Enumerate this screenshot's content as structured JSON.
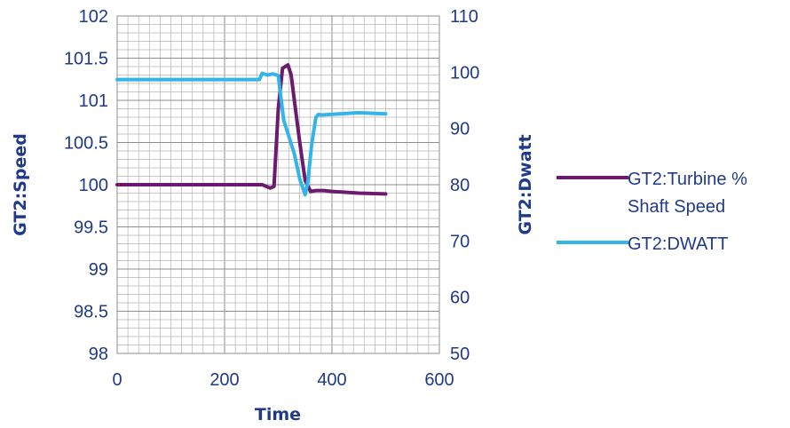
{
  "chart_data": {
    "type": "line",
    "xlabel": "Time",
    "ylabel_left": "GT2:Speed",
    "ylabel_right": "GT2:Dwatt",
    "xlim": [
      0,
      600
    ],
    "ylim_left": [
      98,
      102
    ],
    "ylim_right": [
      50,
      110
    ],
    "x_ticks": [
      "0",
      "200",
      "400",
      "600"
    ],
    "y_left_ticks": [
      "98",
      "98.5",
      "99",
      "99.5",
      "100",
      "100.5",
      "101",
      "101.5",
      "102"
    ],
    "y_right_ticks": [
      "50",
      "60",
      "70",
      "80",
      "90",
      "100",
      "110"
    ],
    "grid": true,
    "legend_position": "right",
    "series": [
      {
        "name": "GT2:Turbine % Shaft Speed",
        "name_lines": [
          "GT2:Turbine %",
          "Shaft Speed"
        ],
        "axis": "left",
        "color": "#6b1a6e",
        "x": [
          0,
          100,
          200,
          270,
          285,
          292,
          300,
          308,
          318,
          324,
          330,
          340,
          350,
          360,
          370,
          385,
          400,
          450,
          500
        ],
        "y": [
          100,
          100,
          100,
          100,
          99.96,
          99.98,
          100.9,
          101.38,
          101.42,
          101.3,
          101.0,
          100.5,
          100.05,
          99.92,
          99.93,
          99.93,
          99.92,
          99.9,
          99.89
        ]
      },
      {
        "name": "GT2:DWATT",
        "axis": "right",
        "color": "#33b5ea",
        "x": [
          0,
          100,
          200,
          265,
          270,
          280,
          290,
          300,
          310,
          320,
          330,
          340,
          350,
          355,
          362,
          370,
          375,
          380,
          400,
          450,
          500
        ],
        "y": [
          98.7,
          98.7,
          98.7,
          98.7,
          99.8,
          99.5,
          99.7,
          99.4,
          91.5,
          88.5,
          85.5,
          81.0,
          78.2,
          80.5,
          87.0,
          92.0,
          92.5,
          92.4,
          92.5,
          92.8,
          92.6
        ]
      }
    ]
  }
}
